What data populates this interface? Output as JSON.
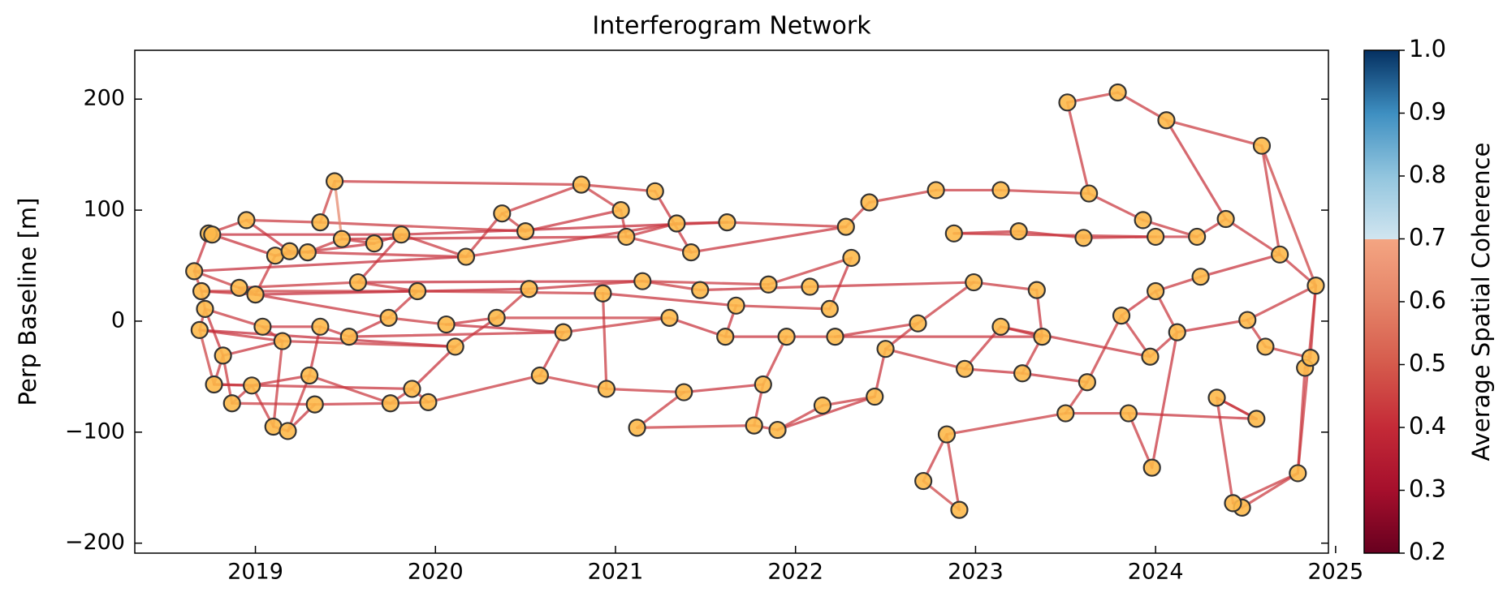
{
  "chart_data": {
    "type": "network",
    "title": "Interferogram Network",
    "ylabel": "Perp Baseline [m]",
    "colorbar_label": "Average Spatial Coherence",
    "xlim": [
      2018.33,
      2024.96
    ],
    "ylim": [
      -209,
      244
    ],
    "xticks": [
      2019,
      2020,
      2021,
      2022,
      2023,
      2024,
      2025
    ],
    "yticks": [
      {
        "value": -200,
        "label": "−200"
      },
      {
        "value": -100,
        "label": "−100"
      },
      0,
      100,
      200
    ],
    "clim": [
      0.2,
      1.0
    ],
    "cticks": [
      0.2,
      0.3,
      0.4,
      0.5,
      0.6,
      0.7,
      0.8,
      0.9,
      {
        "value": 1.0,
        "label": "1.0"
      }
    ],
    "colormap": [
      {
        "value": 0.2,
        "color": "#67001f"
      },
      {
        "value": 0.3,
        "color": "#a50f2c"
      },
      {
        "value": 0.4,
        "color": "#c42a37"
      },
      {
        "value": 0.5,
        "color": "#d55a4c"
      },
      {
        "value": 0.6,
        "color": "#e58468"
      },
      {
        "value": 0.7,
        "color": "#f4a582"
      },
      {
        "value": 0.7,
        "color": "#d1e5f0"
      },
      {
        "value": 0.8,
        "color": "#92c5de"
      },
      {
        "value": 0.9,
        "color": "#3e8fc1"
      },
      {
        "value": 1.0,
        "color": "#053061"
      }
    ],
    "node_color": "#fdb94a",
    "x": [
      2018.66,
      2018.7,
      2018.72,
      2018.69,
      2018.74,
      2018.76,
      2018.77,
      2018.82,
      2018.87,
      2018.91,
      2018.95,
      2018.98,
      2019.0,
      2019.1,
      2019.11,
      2019.18,
      2019.19,
      2019.29,
      2019.3,
      2019.36,
      2019.33,
      2019.44,
      2019.48,
      2019.57,
      2019.66,
      2019.75,
      2019.81,
      2019.87,
      2019.96,
      2020.06,
      2020.17,
      2020.37,
      2020.5,
      2020.58,
      2020.81,
      2021.03,
      2021.06,
      2021.12,
      2021.22,
      2021.34,
      2021.42,
      2021.62,
      2021.77,
      2021.9,
      2022.15,
      2022.28,
      2022.41,
      2022.44,
      2022.71,
      2022.78,
      2022.84,
      2022.88,
      2022.91,
      2023.14,
      2023.24,
      2023.34,
      2023.51,
      2023.63,
      2023.6,
      2023.79,
      2023.93,
      2024.06,
      2024.0,
      2024.23,
      2024.39,
      2024.59,
      2024.69,
      2024.89,
      2024.83,
      2024.79,
      2024.48,
      2024.43,
      2024.34,
      2024.56,
      2023.98,
      2023.85,
      2023.5,
      2023.62,
      2023.81,
      2024.0,
      2024.25,
      2024.51,
      2024.61,
      2024.86,
      2024.12,
      2023.97,
      2023.14,
      2022.99,
      2022.94,
      2022.5,
      2022.68,
      2022.31,
      2022.19,
      2022.08,
      2021.85,
      2021.67,
      2021.47,
      2021.3,
      2021.15,
      2020.93,
      2020.71,
      2020.52,
      2020.34,
      2020.11,
      2019.9,
      2019.74,
      2019.52,
      2019.36,
      2019.15,
      2019.04,
      2020.95,
      2021.38,
      2021.82,
      2021.61,
      2021.95,
      2022.22,
      2023.37,
      2023.26
    ],
    "y": [
      45,
      27,
      11,
      -8,
      79,
      78,
      -57,
      -31,
      -74,
      30,
      91,
      -58,
      24,
      -95,
      59,
      -99,
      63,
      62,
      -49,
      89,
      -75,
      126,
      74,
      35,
      70,
      -74,
      78,
      -61,
      -73,
      -3,
      58,
      97,
      81,
      -49,
      123,
      100,
      76,
      -96,
      117,
      88,
      62,
      89,
      -94,
      -98,
      -76,
      85,
      107,
      -68,
      -144,
      118,
      -102,
      79,
      -170,
      118,
      81,
      28,
      197,
      115,
      75,
      206,
      91,
      181,
      76,
      76,
      92,
      158,
      60,
      32,
      -42,
      -137,
      -168,
      -164,
      -69,
      -88,
      -132,
      -83,
      -83,
      -55,
      5,
      27,
      40,
      1,
      -23,
      -33,
      -10,
      -32,
      -5,
      35,
      -43,
      -25,
      -2,
      57,
      11,
      31,
      33,
      14,
      28,
      3,
      36,
      25,
      -10,
      29,
      3,
      -23,
      27,
      3,
      -14,
      -5,
      -18,
      -5,
      -61,
      -64,
      -57,
      -14,
      -14,
      -14,
      -14,
      -47
    ],
    "edges": [
      [
        0,
        1,
        0.42
      ],
      [
        0,
        4,
        0.41
      ],
      [
        0,
        9,
        0.43
      ],
      [
        0,
        30,
        0.4
      ],
      [
        1,
        2,
        0.42
      ],
      [
        1,
        12,
        0.41
      ],
      [
        1,
        104,
        0.42
      ],
      [
        2,
        3,
        0.43
      ],
      [
        2,
        7,
        0.41
      ],
      [
        2,
        109,
        0.42
      ],
      [
        3,
        6,
        0.44
      ],
      [
        3,
        108,
        0.41
      ],
      [
        3,
        103,
        0.4
      ],
      [
        4,
        5,
        0.45
      ],
      [
        4,
        10,
        0.42
      ],
      [
        5,
        14,
        0.41
      ],
      [
        5,
        26,
        0.4
      ],
      [
        6,
        7,
        0.42
      ],
      [
        6,
        11,
        0.43
      ],
      [
        6,
        27,
        0.41
      ],
      [
        7,
        8,
        0.42
      ],
      [
        7,
        108,
        0.41
      ],
      [
        8,
        11,
        0.42
      ],
      [
        8,
        20,
        0.43
      ],
      [
        9,
        12,
        0.41
      ],
      [
        9,
        23,
        0.42
      ],
      [
        10,
        19,
        0.43
      ],
      [
        10,
        16,
        0.41
      ],
      [
        11,
        13,
        0.42
      ],
      [
        11,
        18,
        0.41
      ],
      [
        12,
        14,
        0.42
      ],
      [
        12,
        105,
        0.41
      ],
      [
        12,
        101,
        0.4
      ],
      [
        13,
        15,
        0.43
      ],
      [
        13,
        108,
        0.42
      ],
      [
        14,
        16,
        0.42
      ],
      [
        14,
        24,
        0.41
      ],
      [
        15,
        18,
        0.42
      ],
      [
        15,
        20,
        0.41
      ],
      [
        16,
        17,
        0.43
      ],
      [
        17,
        22,
        0.42
      ],
      [
        17,
        30,
        0.41
      ],
      [
        18,
        25,
        0.42
      ],
      [
        18,
        107,
        0.41
      ],
      [
        19,
        21,
        0.44
      ],
      [
        19,
        32,
        0.42
      ],
      [
        20,
        25,
        0.41
      ],
      [
        21,
        22,
        0.6
      ],
      [
        22,
        24,
        0.42
      ],
      [
        23,
        26,
        0.41
      ],
      [
        23,
        104,
        0.42
      ],
      [
        23,
        98,
        0.4
      ],
      [
        24,
        26,
        0.42
      ],
      [
        25,
        27,
        0.42
      ],
      [
        25,
        28,
        0.41
      ],
      [
        26,
        30,
        0.42
      ],
      [
        26,
        41,
        0.4
      ],
      [
        27,
        28,
        0.43
      ],
      [
        27,
        103,
        0.41
      ],
      [
        28,
        33,
        0.42
      ],
      [
        29,
        102,
        0.41
      ],
      [
        29,
        105,
        0.42
      ],
      [
        29,
        100,
        0.4
      ],
      [
        30,
        31,
        0.42
      ],
      [
        30,
        39,
        0.41
      ],
      [
        31,
        32,
        0.43
      ],
      [
        31,
        34,
        0.42
      ],
      [
        32,
        35,
        0.41
      ],
      [
        33,
        110,
        0.42
      ],
      [
        33,
        100,
        0.41
      ],
      [
        34,
        35,
        0.43
      ],
      [
        34,
        38,
        0.42
      ],
      [
        35,
        36,
        0.42
      ],
      [
        36,
        39,
        0.41
      ],
      [
        36,
        40,
        0.42
      ],
      [
        37,
        42,
        0.43
      ],
      [
        37,
        111,
        0.42
      ],
      [
        38,
        40,
        0.41
      ],
      [
        39,
        41,
        0.42
      ],
      [
        40,
        45,
        0.41
      ],
      [
        41,
        45,
        0.42
      ],
      [
        42,
        43,
        0.43
      ],
      [
        42,
        112,
        0.41
      ],
      [
        43,
        44,
        0.42
      ],
      [
        44,
        47,
        0.42
      ],
      [
        45,
        46,
        0.43
      ],
      [
        46,
        49,
        0.42
      ],
      [
        47,
        89,
        0.41
      ],
      [
        48,
        52,
        0.44
      ],
      [
        48,
        50,
        0.42
      ],
      [
        49,
        53,
        0.42
      ],
      [
        50,
        76,
        0.43
      ],
      [
        51,
        54,
        0.41
      ],
      [
        51,
        62,
        0.42
      ],
      [
        53,
        57,
        0.42
      ],
      [
        54,
        58,
        0.41
      ],
      [
        55,
        87,
        0.42
      ],
      [
        55,
        116,
        0.41
      ],
      [
        56,
        59,
        0.43
      ],
      [
        57,
        60,
        0.42
      ],
      [
        58,
        62,
        0.41
      ],
      [
        59,
        61,
        0.42
      ],
      [
        60,
        63,
        0.42
      ],
      [
        61,
        65,
        0.43
      ],
      [
        62,
        63,
        0.41
      ],
      [
        63,
        64,
        0.42
      ],
      [
        64,
        66,
        0.42
      ],
      [
        65,
        66,
        0.43
      ],
      [
        65,
        67,
        0.44
      ],
      [
        66,
        67,
        0.42
      ],
      [
        67,
        83,
        0.41
      ],
      [
        67,
        69,
        0.43
      ],
      [
        67,
        81,
        0.42
      ],
      [
        68,
        69,
        0.42
      ],
      [
        68,
        83,
        0.41
      ],
      [
        69,
        70,
        0.43
      ],
      [
        69,
        71,
        0.42
      ],
      [
        70,
        71,
        0.41
      ],
      [
        71,
        72,
        0.42
      ],
      [
        72,
        73,
        0.42
      ],
      [
        73,
        75,
        0.41
      ],
      [
        74,
        75,
        0.42
      ],
      [
        74,
        84,
        0.41
      ],
      [
        75,
        76,
        0.42
      ],
      [
        76,
        77,
        0.43
      ],
      [
        77,
        78,
        0.42
      ],
      [
        78,
        79,
        0.41
      ],
      [
        78,
        85,
        0.42
      ],
      [
        79,
        80,
        0.42
      ],
      [
        80,
        66,
        0.41
      ],
      [
        81,
        82,
        0.42
      ],
      [
        81,
        84,
        0.41
      ],
      [
        82,
        83,
        0.42
      ],
      [
        84,
        85,
        0.42
      ],
      [
        85,
        86,
        0.41
      ],
      [
        86,
        88,
        0.42
      ],
      [
        86,
        116,
        0.41
      ],
      [
        87,
        90,
        0.42
      ],
      [
        87,
        93,
        0.41
      ],
      [
        88,
        89,
        0.42
      ],
      [
        88,
        117,
        0.41
      ],
      [
        89,
        90,
        0.42
      ],
      [
        90,
        115,
        0.41
      ],
      [
        91,
        94,
        0.42
      ],
      [
        91,
        92,
        0.41
      ],
      [
        92,
        95,
        0.42
      ],
      [
        93,
        96,
        0.41
      ],
      [
        94,
        98,
        0.42
      ],
      [
        95,
        99,
        0.41
      ],
      [
        96,
        98,
        0.42
      ],
      [
        97,
        113,
        0.41
      ],
      [
        97,
        102,
        0.42
      ],
      [
        98,
        101,
        0.41
      ],
      [
        99,
        104,
        0.42
      ],
      [
        100,
        106,
        0.41
      ],
      [
        101,
        102,
        0.42
      ],
      [
        102,
        103,
        0.41
      ],
      [
        103,
        108,
        0.42
      ],
      [
        104,
        105,
        0.42
      ],
      [
        105,
        106,
        0.41
      ],
      [
        106,
        107,
        0.42
      ],
      [
        107,
        109,
        0.41
      ],
      [
        108,
        109,
        0.42
      ],
      [
        110,
        111,
        0.42
      ],
      [
        111,
        112,
        0.41
      ],
      [
        112,
        114,
        0.42
      ],
      [
        113,
        114,
        0.41
      ],
      [
        114,
        115,
        0.42
      ],
      [
        115,
        116,
        0.41
      ],
      [
        116,
        117,
        0.42
      ],
      [
        117,
        77,
        0.41
      ],
      [
        110,
        99,
        0.42
      ],
      [
        113,
        95,
        0.41
      ],
      [
        97,
        100,
        0.42
      ],
      [
        52,
        50,
        0.43
      ],
      [
        56,
        57,
        0.42
      ],
      [
        61,
        64,
        0.41
      ],
      [
        79,
        84,
        0.42
      ],
      [
        22,
        36,
        0.41
      ],
      [
        21,
        34,
        0.42
      ],
      [
        43,
        47,
        0.41
      ],
      [
        73,
        72,
        0.42
      ]
    ]
  }
}
